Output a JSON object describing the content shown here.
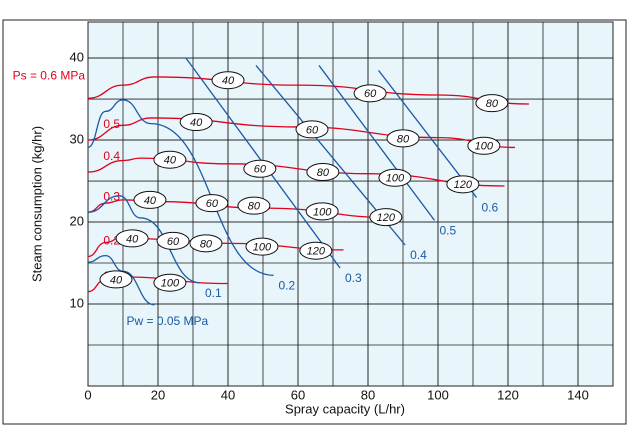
{
  "chart_data": {
    "type": "line",
    "x_label": "Spray capacity (L/hr)",
    "y_label": "Steam consumption (kg/hr)",
    "xlim": [
      0,
      150
    ],
    "ylim": [
      0,
      44.4
    ],
    "xticks": [
      0,
      20,
      40,
      60,
      80,
      100,
      120,
      140
    ],
    "yticks": [
      10,
      20,
      30,
      40
    ],
    "grid": true,
    "background": "#e8f5fb",
    "series": [
      {
        "name": "0.1",
        "color": "#e3001b",
        "x": [
          0,
          5,
          10,
          40
        ],
        "values": [
          11.5,
          13,
          13.3,
          12.5
        ]
      },
      {
        "name": "0.2",
        "color": "#e3001b",
        "x": [
          0,
          5,
          10,
          20,
          40,
          73
        ],
        "values": [
          15.8,
          17.5,
          18.2,
          17.9,
          17.4,
          16.6
        ]
      },
      {
        "name": "0.3",
        "color": "#e3001b",
        "x": [
          0,
          5,
          10,
          20,
          50,
          89
        ],
        "values": [
          21.2,
          22.3,
          22.7,
          22.5,
          21.7,
          20.5
        ]
      },
      {
        "name": "0.4",
        "color": "#e3001b",
        "x": [
          0,
          10,
          15,
          40,
          80,
          119
        ],
        "values": [
          26.1,
          27.5,
          27.8,
          27.1,
          25.9,
          24.4
        ]
      },
      {
        "name": "0.5",
        "color": "#e3001b",
        "x": [
          0,
          10,
          18,
          60,
          100,
          122
        ],
        "values": [
          30,
          31.8,
          32.7,
          31.6,
          30.3,
          29.1
        ]
      },
      {
        "name": "Ps = 0.6 MPa",
        "color": "#e3001b",
        "x": [
          0,
          10,
          19,
          60,
          100,
          126
        ],
        "values": [
          35.1,
          36.7,
          37.7,
          36.7,
          35.5,
          34.4
        ]
      },
      {
        "name": "Pw = 0.05 MPa",
        "color": "#1b5aa6",
        "x": [
          0,
          5,
          10,
          19
        ],
        "values": [
          15.1,
          15.9,
          14,
          9.9
        ]
      },
      {
        "name": "0.1",
        "color": "#1b5aa6",
        "x": [
          0,
          9,
          15,
          32
        ],
        "values": [
          21.2,
          23.2,
          20.5,
          12.6
        ]
      },
      {
        "name": "0.2",
        "color": "#1b5aa6",
        "x": [
          0,
          5,
          10,
          18,
          53
        ],
        "values": [
          29.1,
          33.5,
          34.9,
          32,
          13.5
        ]
      },
      {
        "name": "0.3",
        "color": "#1b5aa6",
        "x": [
          28,
          72
        ],
        "values": [
          40,
          14.4
        ]
      },
      {
        "name": "0.4",
        "color": "#1b5aa6",
        "x": [
          48,
          90.6
        ],
        "values": [
          39.1,
          17.2
        ]
      },
      {
        "name": "0.5",
        "color": "#1b5aa6",
        "x": [
          66,
          99
        ],
        "values": [
          39.1,
          20.2
        ]
      },
      {
        "name": "0.6",
        "color": "#1b5aa6",
        "x": [
          83,
          111
        ],
        "values": [
          38.5,
          23
        ]
      }
    ],
    "annotations": [
      {
        "text": "40",
        "x": 8,
        "y": 13
      },
      {
        "text": "100",
        "x": 23.4,
        "y": 12.6
      },
      {
        "text": "40",
        "x": 12.6,
        "y": 18
      },
      {
        "text": "60",
        "x": 24.3,
        "y": 17.7
      },
      {
        "text": "80",
        "x": 33.7,
        "y": 17.4
      },
      {
        "text": "100",
        "x": 49.7,
        "y": 17
      },
      {
        "text": "120",
        "x": 65.1,
        "y": 16.5
      },
      {
        "text": "40",
        "x": 17.7,
        "y": 22.7
      },
      {
        "text": "60",
        "x": 35.4,
        "y": 22.3
      },
      {
        "text": "80",
        "x": 47.4,
        "y": 22
      },
      {
        "text": "100",
        "x": 66.9,
        "y": 21.3
      },
      {
        "text": "120",
        "x": 85.1,
        "y": 20.6
      },
      {
        "text": "40",
        "x": 23.4,
        "y": 27.6
      },
      {
        "text": "60",
        "x": 49.1,
        "y": 26.5
      },
      {
        "text": "80",
        "x": 67.1,
        "y": 26.1
      },
      {
        "text": "100",
        "x": 87.7,
        "y": 25.4
      },
      {
        "text": "120",
        "x": 107.1,
        "y": 24.6
      },
      {
        "text": "40",
        "x": 30.9,
        "y": 32.2
      },
      {
        "text": "60",
        "x": 64,
        "y": 31.3
      },
      {
        "text": "80",
        "x": 90,
        "y": 30.2
      },
      {
        "text": "100",
        "x": 113.1,
        "y": 29.3
      },
      {
        "text": "40",
        "x": 40,
        "y": 37.3
      },
      {
        "text": "60",
        "x": 80.6,
        "y": 35.7
      },
      {
        "text": "80",
        "x": 115.4,
        "y": 34.5
      }
    ]
  }
}
